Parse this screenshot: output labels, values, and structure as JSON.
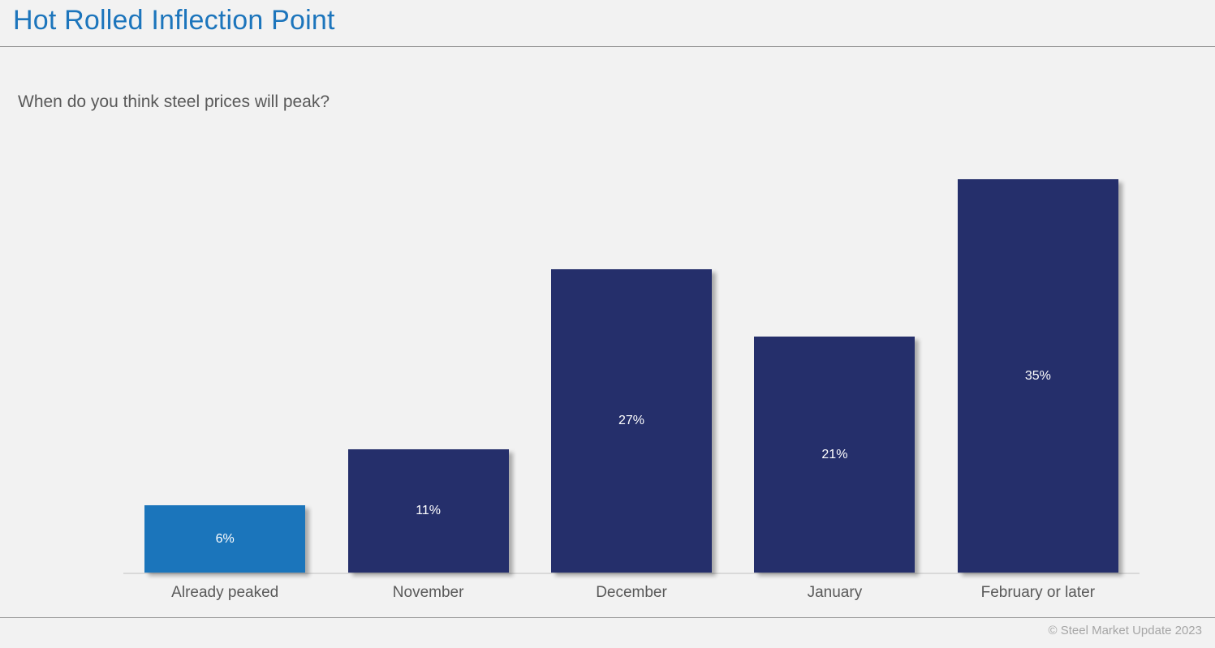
{
  "page": {
    "title": "Hot Rolled Inflection Point",
    "footer": "© Steel Market Update 2023"
  },
  "chart_data": {
    "type": "bar",
    "title": "When do you think steel prices will peak?",
    "categories": [
      "Already peaked",
      "November",
      "December",
      "January",
      "February or later"
    ],
    "values": [
      6,
      11,
      27,
      21,
      35
    ],
    "data_labels": [
      "6%",
      "11%",
      "27%",
      "21%",
      "35%"
    ],
    "bar_colors": [
      "#1b75bb",
      "#252f6b",
      "#252f6b",
      "#252f6b",
      "#252f6b"
    ],
    "ylim": [
      0,
      36
    ],
    "xlabel": "",
    "ylabel": "",
    "grid": false,
    "legend": false,
    "data_label_position": "center",
    "colors": {
      "highlight_blue": "#1b75bb",
      "primary_navy": "#252f6b",
      "title_blue": "#1c75bc",
      "text_gray": "#595959",
      "footer_gray": "#a6a6a6",
      "axis_gray": "#d9d9d9"
    }
  }
}
